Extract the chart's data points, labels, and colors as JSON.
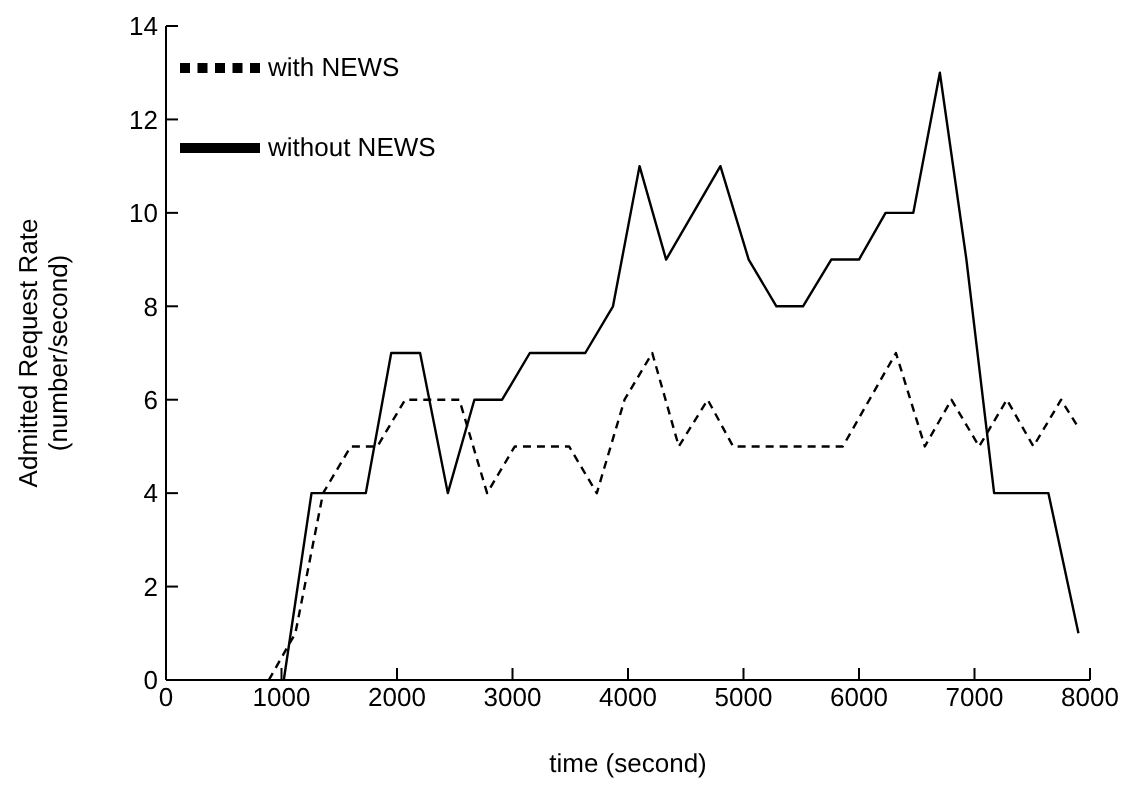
{
  "chart_data": {
    "type": "line",
    "xlabel": "time (second)",
    "ylabel": "Admitted Request Rate\n(number/second)",
    "xlim": [
      0,
      8000
    ],
    "xticks": [
      0,
      1000,
      2000,
      3000,
      4000,
      5000,
      6000,
      7000,
      8000
    ],
    "ylim": [
      0,
      14
    ],
    "yticks": [
      0,
      2,
      4,
      6,
      8,
      10,
      12,
      14
    ],
    "grid": false,
    "legend": "top left",
    "marker": "none",
    "series": [
      {
        "name": "without NEWS",
        "color": "#000000",
        "line_style": "solid",
        "x": [
          1020,
          1260,
          1730,
          1950,
          2200,
          2440,
          2670,
          2910,
          3150,
          3630,
          3870,
          4100,
          4330,
          4800,
          5045,
          5285,
          5515,
          5760,
          6000,
          6230,
          6470,
          6700,
          6930,
          7170,
          7640,
          7900
        ],
        "values": [
          0,
          4,
          4,
          7,
          7,
          4,
          6,
          6,
          7,
          7,
          8,
          11,
          9,
          11,
          9,
          8,
          8,
          9,
          9,
          10,
          10,
          13,
          9,
          4,
          4,
          1
        ]
      },
      {
        "name": "with NEWS",
        "color": "#000000",
        "line_style": "dashed",
        "x": [
          890,
          1120,
          1360,
          1600,
          1830,
          2070,
          2540,
          2780,
          3020,
          3490,
          3730,
          3970,
          4210,
          4440,
          4690,
          4910,
          5860,
          6320,
          6570,
          6800,
          7040,
          7280,
          7510,
          7750,
          7900
        ],
        "values": [
          0,
          1,
          4,
          5,
          5,
          6,
          6,
          4,
          5,
          5,
          4,
          6,
          7,
          5,
          6,
          5,
          5,
          7,
          5,
          6,
          5,
          6,
          5,
          6,
          5.4
        ]
      }
    ]
  }
}
